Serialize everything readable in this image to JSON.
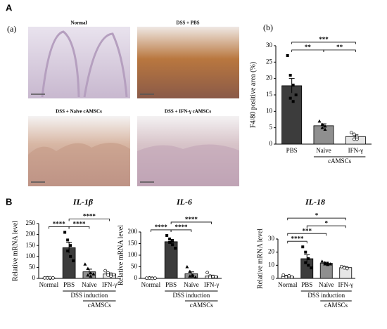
{
  "panel_a_label": "A",
  "panel_b_label": "B",
  "sub_a_label": "(a)",
  "sub_b_label": "(b)",
  "micrographs": [
    "Normal",
    "DSS + PBS",
    "DSS + Naïve cAMSCs",
    "DSS + IFN-γ cAMSCs"
  ],
  "chart_data": [
    {
      "type": "bar",
      "ylabel": "F4/80 positive area (%)",
      "categories": [
        "PBS",
        "Naïve",
        "IFN-γ"
      ],
      "colors": [
        "#3c3c3c",
        "#8f8f8f",
        "#e6e6e6"
      ],
      "markers": [
        "square",
        "triangle",
        "circle"
      ],
      "values": [
        17.8,
        5.6,
        2.3
      ],
      "errors": [
        2.2,
        0.6,
        0.5
      ],
      "points": [
        [
          27,
          21,
          18,
          14,
          13,
          15
        ],
        [
          7,
          6,
          5.5,
          5,
          4.5
        ],
        [
          3.5,
          3,
          2,
          1.5,
          1.5
        ]
      ],
      "ylim": [
        0,
        30
      ],
      "yticks": [
        0,
        5,
        10,
        15,
        20,
        25,
        30
      ],
      "groups": [
        {
          "label": "cAMSCs",
          "categories": [
            "Naïve",
            "IFN-γ"
          ]
        }
      ],
      "annotations": [
        {
          "text": "**",
          "from": "PBS",
          "to": "Naïve"
        },
        {
          "text": "**",
          "from": "Naïve",
          "to": "IFN-γ"
        },
        {
          "text": "***",
          "from": "PBS",
          "to": "IFN-γ"
        }
      ]
    },
    {
      "type": "bar",
      "title": "IL-1β",
      "ylabel": "Relative mRNA level",
      "categories": [
        "Normal",
        "PBS",
        "Naïve",
        "IFN-γ"
      ],
      "colors": [
        "#ffffff",
        "#3c3c3c",
        "#8f8f8f",
        "#e6e6e6"
      ],
      "markers": [
        "circle",
        "square",
        "triangle",
        "circle"
      ],
      "values": [
        2,
        140,
        30,
        20
      ],
      "errors": [
        0.5,
        25,
        12,
        5
      ],
      "points": [
        [
          2,
          3,
          1,
          2,
          3,
          2
        ],
        [
          210,
          175,
          150,
          125,
          100,
          80
        ],
        [
          65,
          45,
          25,
          15,
          10,
          20
        ],
        [
          35,
          25,
          18,
          15,
          10,
          17
        ]
      ],
      "ylim": [
        0,
        250
      ],
      "yticks": [
        0,
        50,
        100,
        150,
        200,
        250
      ],
      "groups": [
        {
          "label": "DSS induction",
          "categories": [
            "PBS",
            "Naïve",
            "IFN-γ"
          ]
        },
        {
          "label": "cAMSCs",
          "categories": [
            "Naïve",
            "IFN-γ"
          ]
        }
      ],
      "annotations": [
        {
          "text": "****",
          "from": "Normal",
          "to": "PBS"
        },
        {
          "text": "****",
          "from": "PBS",
          "to": "Naïve"
        },
        {
          "text": "****",
          "from": "PBS",
          "to": "IFN-γ"
        }
      ]
    },
    {
      "type": "bar",
      "title": "IL-6",
      "ylabel": "Relative mRNA level",
      "categories": [
        "Normal",
        "PBS",
        "Naïve",
        "IFN-γ"
      ],
      "colors": [
        "#ffffff",
        "#3c3c3c",
        "#8f8f8f",
        "#e6e6e6"
      ],
      "markers": [
        "circle",
        "square",
        "triangle",
        "circle"
      ],
      "values": [
        1,
        158,
        20,
        10
      ],
      "errors": [
        0.3,
        10,
        8,
        4
      ],
      "points": [
        [
          1,
          2,
          1,
          1,
          0,
          1
        ],
        [
          185,
          170,
          160,
          155,
          145,
          130
        ],
        [
          50,
          30,
          15,
          10,
          10,
          5
        ],
        [
          25,
          10,
          5,
          5,
          8,
          7
        ]
      ],
      "ylim": [
        0,
        200
      ],
      "yticks": [
        0,
        50,
        100,
        150,
        200
      ],
      "groups": [
        {
          "label": "DSS induction",
          "categories": [
            "PBS",
            "Naïve",
            "IFN-γ"
          ]
        },
        {
          "label": "cAMSCs",
          "categories": [
            "Naïve",
            "IFN-γ"
          ]
        }
      ],
      "annotations": [
        {
          "text": "****",
          "from": "Normal",
          "to": "PBS"
        },
        {
          "text": "****",
          "from": "PBS",
          "to": "Naïve"
        },
        {
          "text": "****",
          "from": "PBS",
          "to": "IFN-γ"
        }
      ]
    },
    {
      "type": "bar",
      "title": "IL-18",
      "ylabel": "Relative mRNA level",
      "categories": [
        "Normal",
        "PBS",
        "Naïve",
        "IFN-γ"
      ],
      "colors": [
        "#ffffff",
        "#3c3c3c",
        "#8f8f8f",
        "#e6e6e6"
      ],
      "markers": [
        "circle",
        "square",
        "triangle",
        "circle"
      ],
      "values": [
        1.5,
        15,
        11.5,
        8.2
      ],
      "errors": [
        0.3,
        3,
        0.8,
        0.3
      ],
      "points": [
        [
          2.5,
          1.5,
          1,
          1,
          2,
          1
        ],
        [
          24,
          20,
          15,
          12,
          10,
          8
        ],
        [
          13,
          12,
          11.5,
          11,
          10.5,
          11
        ],
        [
          9,
          8.5,
          8,
          8,
          7.5
        ]
      ],
      "ylim": [
        0,
        30
      ],
      "yticks": [
        0,
        10,
        20,
        30
      ],
      "groups": [
        {
          "label": "DSS induction",
          "categories": [
            "PBS",
            "Naïve",
            "IFN-γ"
          ]
        },
        {
          "label": "cAMSCs",
          "categories": [
            "Naïve",
            "IFN-γ"
          ]
        }
      ],
      "annotations": [
        {
          "text": "****",
          "from": "Normal",
          "to": "PBS"
        },
        {
          "text": "***",
          "from": "Normal",
          "to": "Naïve"
        },
        {
          "text": "*",
          "from": "PBS",
          "to": "IFN-γ"
        },
        {
          "text": "*",
          "from": "Normal",
          "to": "IFN-γ"
        }
      ]
    }
  ]
}
